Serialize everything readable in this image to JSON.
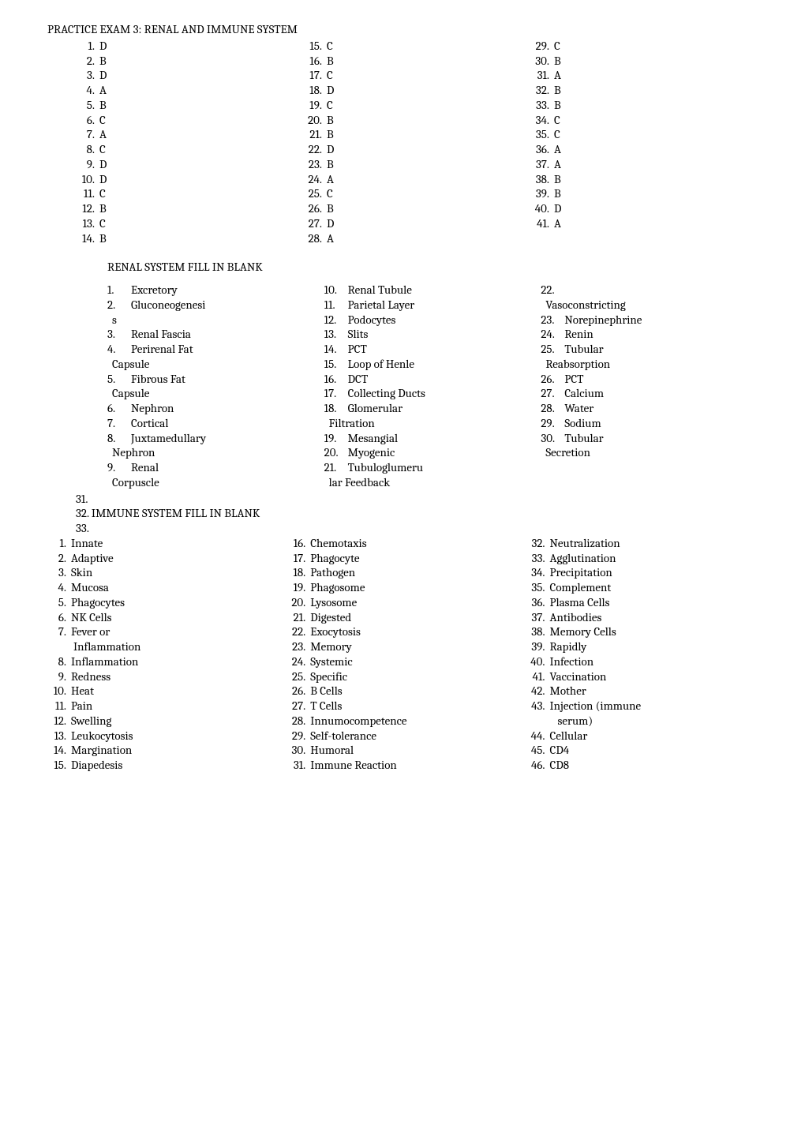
{
  "title": "PRACTICE EXAM 3: RENAL AND IMMUNE SYSTEM",
  "answers": {
    "col1": [
      {
        "n": "1.",
        "v": "D"
      },
      {
        "n": "2.",
        "v": "B"
      },
      {
        "n": "3.",
        "v": "D"
      },
      {
        "n": "4.",
        "v": "A"
      },
      {
        "n": "5.",
        "v": "B"
      },
      {
        "n": "6.",
        "v": "C"
      },
      {
        "n": "7.",
        "v": "A"
      },
      {
        "n": "8.",
        "v": "C"
      },
      {
        "n": "9.",
        "v": "D"
      },
      {
        "n": "10.",
        "v": "D"
      },
      {
        "n": "11.",
        "v": "C"
      },
      {
        "n": "12.",
        "v": "B"
      },
      {
        "n": "13.",
        "v": "C"
      },
      {
        "n": "14.",
        "v": "B"
      }
    ],
    "col2": [
      {
        "n": "15.",
        "v": "C"
      },
      {
        "n": "16.",
        "v": "B"
      },
      {
        "n": "17.",
        "v": "C"
      },
      {
        "n": "18.",
        "v": "D"
      },
      {
        "n": "19.",
        "v": "C"
      },
      {
        "n": "20.",
        "v": "B"
      },
      {
        "n": "21.",
        "v": "B"
      },
      {
        "n": "22.",
        "v": "D"
      },
      {
        "n": "23.",
        "v": "B"
      },
      {
        "n": "24.",
        "v": "A"
      },
      {
        "n": "25.",
        "v": "C"
      },
      {
        "n": "26.",
        "v": "B"
      },
      {
        "n": "27.",
        "v": "D"
      },
      {
        "n": "28.",
        "v": "A"
      }
    ],
    "col3": [
      {
        "n": "29.",
        "v": "C"
      },
      {
        "n": "30.",
        "v": "B"
      },
      {
        "n": "31.",
        "v": "A"
      },
      {
        "n": "32.",
        "v": "B"
      },
      {
        "n": "33.",
        "v": "B"
      },
      {
        "n": "34.",
        "v": "C"
      },
      {
        "n": "35.",
        "v": "C"
      },
      {
        "n": "36.",
        "v": "A"
      },
      {
        "n": "37.",
        "v": "A"
      },
      {
        "n": "38.",
        "v": "B"
      },
      {
        "n": "39.",
        "v": "B"
      },
      {
        "n": "40.",
        "v": "D"
      },
      {
        "n": "41.",
        "v": "A"
      }
    ]
  },
  "renal_header": "RENAL SYSTEM FILL IN BLANK",
  "renal": {
    "col1": [
      {
        "n": "1.",
        "v": "Excretory"
      },
      {
        "n": "2.",
        "v": "Gluconeogenesi"
      },
      {
        "n": "",
        "v": "s"
      },
      {
        "n": "3.",
        "v": "Renal Fascia"
      },
      {
        "n": "4.",
        "v": "Perirenal Fat"
      },
      {
        "n": "",
        "v": "Capsule"
      },
      {
        "n": "5.",
        "v": "Fibrous Fat"
      },
      {
        "n": "",
        "v": "Capsule"
      },
      {
        "n": "6.",
        "v": "Nephron"
      },
      {
        "n": "7.",
        "v": "Cortical"
      },
      {
        "n": "8.",
        "v": "Juxtamedullary"
      },
      {
        "n": "",
        "v": "Nephron"
      },
      {
        "n": "9.",
        "v": "Renal"
      },
      {
        "n": "",
        "v": "Corpuscle"
      }
    ],
    "col2": [
      {
        "n": "10.",
        "v": "Renal Tubule"
      },
      {
        "n": "11.",
        "v": "Parietal Layer"
      },
      {
        "n": "12.",
        "v": "Podocytes"
      },
      {
        "n": "13.",
        "v": "Slits"
      },
      {
        "n": "14.",
        "v": "PCT"
      },
      {
        "n": "15.",
        "v": "Loop of Henle"
      },
      {
        "n": "16.",
        "v": "DCT"
      },
      {
        "n": "17.",
        "v": "Collecting Ducts"
      },
      {
        "n": "18.",
        "v": "Glomerular"
      },
      {
        "n": "",
        "v": "Filtration"
      },
      {
        "n": "19.",
        "v": "Mesangial"
      },
      {
        "n": "20.",
        "v": "Myogenic"
      },
      {
        "n": "21.",
        "v": "Tubuloglumeru"
      },
      {
        "n": "",
        "v": "lar Feedback"
      }
    ],
    "col3": [
      {
        "n": "22.",
        "v": ""
      },
      {
        "n": "",
        "v": "Vasoconstricting"
      },
      {
        "n": "23.",
        "v": "Norepinephrine"
      },
      {
        "n": "24.",
        "v": "Renin"
      },
      {
        "n": "25.",
        "v": "Tubular"
      },
      {
        "n": "",
        "v": "Reabsorption"
      },
      {
        "n": "26.",
        "v": "PCT"
      },
      {
        "n": "27.",
        "v": "Calcium"
      },
      {
        "n": "28.",
        "v": "Water"
      },
      {
        "n": "29.",
        "v": "Sodium"
      },
      {
        "n": "30.",
        "v": "Tubular"
      },
      {
        "n": "",
        "v": "Secretion"
      }
    ]
  },
  "mid_items": {
    "i31": "31.",
    "i32": "32. IMMUNE SYSTEM FILL IN BLANK",
    "i33": "33."
  },
  "immune": {
    "col1": [
      {
        "n": "1.",
        "v": "Innate"
      },
      {
        "n": "2.",
        "v": "Adaptive"
      },
      {
        "n": "3.",
        "v": "Skin"
      },
      {
        "n": "4.",
        "v": "Mucosa"
      },
      {
        "n": "5.",
        "v": "Phagocytes"
      },
      {
        "n": "6.",
        "v": "NK Cells"
      },
      {
        "n": "7.",
        "v": "Fever or"
      },
      {
        "n": "",
        "v": "Inflammation"
      },
      {
        "n": "8.",
        "v": "Inflammation"
      },
      {
        "n": "9.",
        "v": "Redness"
      },
      {
        "n": "10.",
        "v": "Heat"
      },
      {
        "n": "11.",
        "v": "Pain"
      },
      {
        "n": "12.",
        "v": "Swelling"
      },
      {
        "n": "13.",
        "v": "Leukocytosis"
      },
      {
        "n": "14.",
        "v": "Margination"
      },
      {
        "n": "15.",
        "v": "Diapedesis"
      }
    ],
    "col2": [
      {
        "n": "16.",
        "v": "Chemotaxis"
      },
      {
        "n": "17.",
        "v": "Phagocyte"
      },
      {
        "n": "18.",
        "v": "Pathogen"
      },
      {
        "n": "19.",
        "v": "Phagosome"
      },
      {
        "n": "20.",
        "v": "Lysosome"
      },
      {
        "n": "21.",
        "v": "Digested"
      },
      {
        "n": "22.",
        "v": "Exocytosis"
      },
      {
        "n": "23.",
        "v": "Memory"
      },
      {
        "n": "24.",
        "v": "Systemic"
      },
      {
        "n": "25.",
        "v": "Specific"
      },
      {
        "n": "26.",
        "v": "B Cells"
      },
      {
        "n": "27.",
        "v": "T Cells"
      },
      {
        "n": "28.",
        "v": "Innumocompetence"
      },
      {
        "n": "29.",
        "v": "Self-tolerance"
      },
      {
        "n": "30.",
        "v": "Humoral"
      },
      {
        "n": "31.",
        "v": "Immune Reaction"
      }
    ],
    "col3": [
      {
        "n": "32.",
        "v": "Neutralization"
      },
      {
        "n": "33.",
        "v": "Agglutination"
      },
      {
        "n": "34.",
        "v": "Precipitation"
      },
      {
        "n": "35.",
        "v": "Complement"
      },
      {
        "n": "36.",
        "v": "Plasma Cells"
      },
      {
        "n": "37.",
        "v": "Antibodies"
      },
      {
        "n": "38.",
        "v": "Memory Cells"
      },
      {
        "n": "39.",
        "v": "Rapidly"
      },
      {
        "n": "40.",
        "v": "Infection"
      },
      {
        "n": "41.",
        "v": "Vaccination"
      },
      {
        "n": "42.",
        "v": "Mother"
      },
      {
        "n": "43.",
        "v": "Injection (immune"
      },
      {
        "n": "",
        "v": "serum)"
      },
      {
        "n": "44.",
        "v": "Cellular"
      },
      {
        "n": "45.",
        "v": "CD4"
      },
      {
        "n": "46.",
        "v": "CD8"
      }
    ]
  }
}
